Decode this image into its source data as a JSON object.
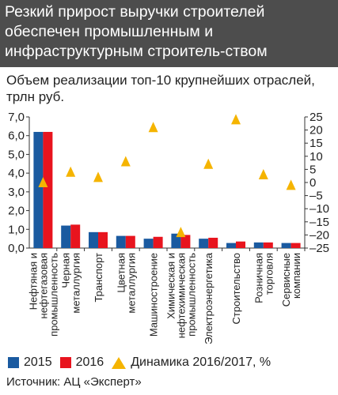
{
  "header": {
    "title": "Резкий прирост выручки строителей обеспечен промышленным и инфраструктурным строитель-ством"
  },
  "source": "Источник: АЦ «Эксперт»",
  "colors": {
    "series_2015": "#1a5aa0",
    "series_2016": "#e8141e",
    "dynamics": "#f5b400",
    "header_bg": "#4d4d4d"
  },
  "chart_data": {
    "type": "bar",
    "title": "Объем реализации топ-10 крупнейших отраслей, трлн руб.",
    "categories": [
      "Нефтяная и нефтегазовая промышленность",
      "Черная металлургия",
      "Транспорт",
      "Цветная металлургия",
      "Машиностроение",
      "Химическая и нефтехимическая промышленность",
      "Электроэнергетика",
      "Строительство",
      "Розничная торговля",
      "Сервисные компании"
    ],
    "category_lines": [
      [
        "Нефтяная и",
        "нефтегазовая",
        "промышленность"
      ],
      [
        "Черная",
        "металлургия"
      ],
      [
        "Транспорт"
      ],
      [
        "Цветная",
        "металлургия"
      ],
      [
        "Машиностроение"
      ],
      [
        "Химическая и",
        "нефтехимическая",
        "промышленность"
      ],
      [
        "Электроэнергетика"
      ],
      [
        "Строительство"
      ],
      [
        "Розничная",
        "торговля"
      ],
      [
        "Сервисные",
        "компании"
      ]
    ],
    "series": [
      {
        "name": "2015",
        "values": [
          6.2,
          1.2,
          0.85,
          0.65,
          0.5,
          0.77,
          0.5,
          0.27,
          0.3,
          0.27
        ]
      },
      {
        "name": "2016",
        "values": [
          6.2,
          1.25,
          0.85,
          0.65,
          0.6,
          0.7,
          0.55,
          0.35,
          0.3,
          0.27
        ]
      },
      {
        "name": "Динамика 2016/2017, %",
        "type": "scatter",
        "axis": "right",
        "values": [
          0,
          4,
          2,
          8,
          21,
          -19,
          7,
          24,
          3,
          -1
        ]
      }
    ],
    "y_ticks": [
      "0,0",
      "1,0",
      "2,0",
      "3,0",
      "4,0",
      "5,0",
      "6,0",
      "7,0"
    ],
    "ylim": [
      0,
      7
    ],
    "y2_ticks": [
      "25",
      "20",
      "15",
      "10",
      "5",
      "0",
      "–5",
      "–10",
      "–15",
      "–20",
      "–25"
    ],
    "y2lim": [
      -25,
      25
    ],
    "legend_position": "bottom",
    "grid": false
  }
}
